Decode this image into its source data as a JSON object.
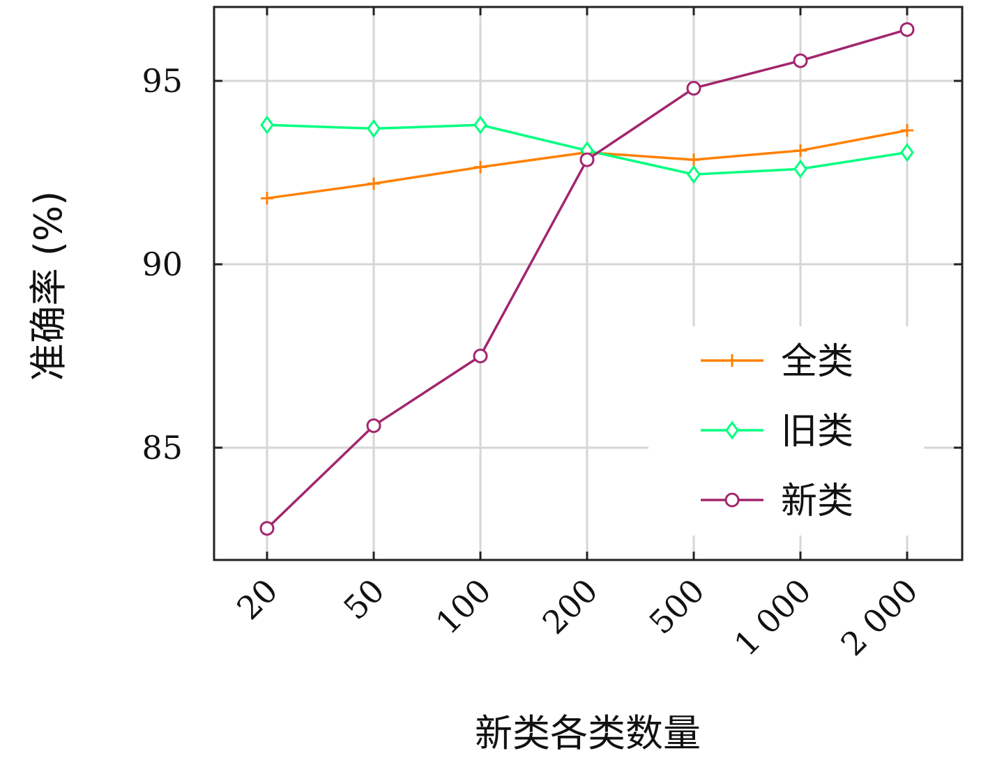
{
  "chart_data": {
    "type": "line",
    "xlabel": "新类各类数量",
    "ylabel": "准确率 (%)",
    "categories": [
      "20",
      "50",
      "100",
      "200",
      "500",
      "1 000",
      "2 000"
    ],
    "y_ticks": [
      85,
      90,
      95
    ],
    "ylim": [
      82,
      97
    ],
    "grid": true,
    "legend_position": "right",
    "series": [
      {
        "name": "全类",
        "marker": "plus",
        "color": "#ff8000",
        "values": [
          91.8,
          92.2,
          92.65,
          93.05,
          92.85,
          93.1,
          93.65
        ]
      },
      {
        "name": "旧类",
        "marker": "diamond",
        "color": "#00ff7f",
        "values": [
          93.8,
          93.7,
          93.8,
          93.1,
          92.45,
          92.6,
          93.05
        ]
      },
      {
        "name": "新类",
        "marker": "circle",
        "color": "#a2266e",
        "values": [
          82.8,
          85.6,
          87.5,
          92.85,
          94.8,
          95.55,
          96.4
        ]
      }
    ]
  }
}
